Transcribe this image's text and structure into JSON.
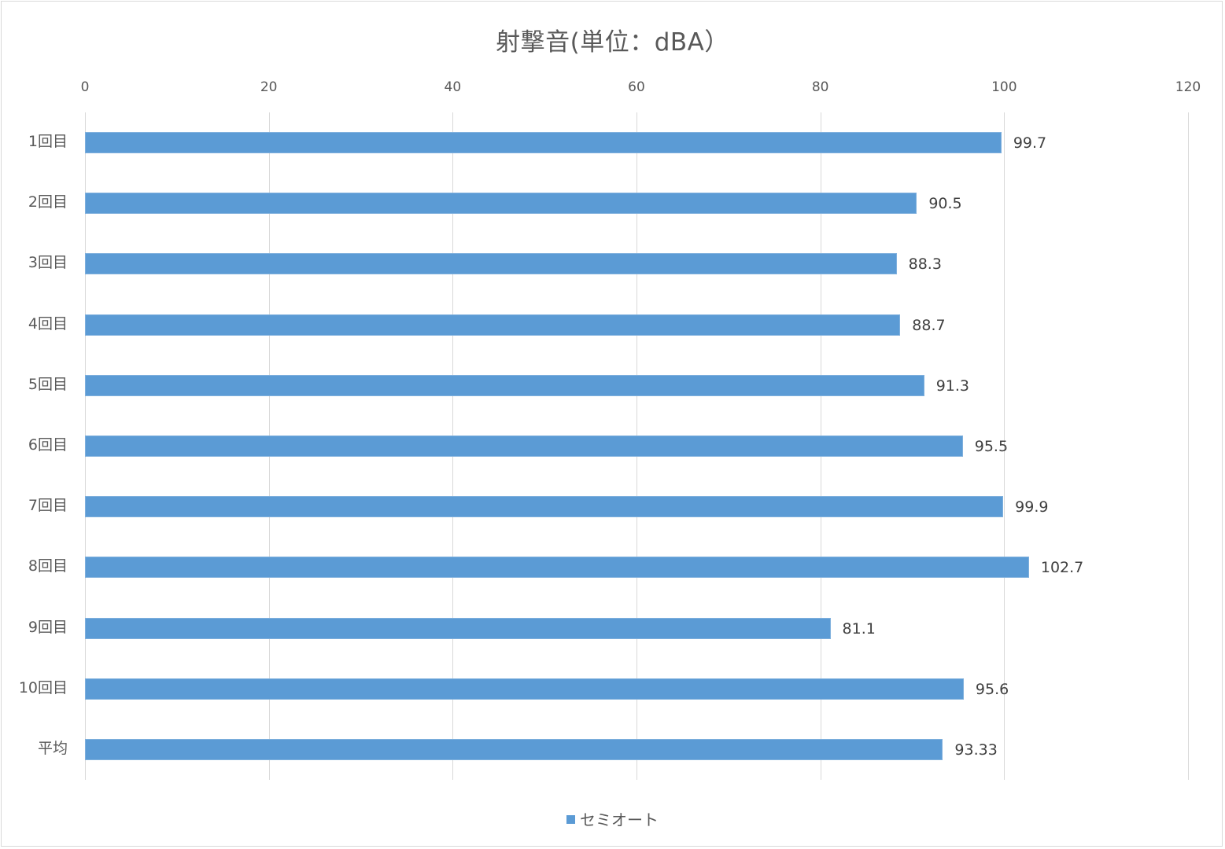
{
  "chart_data": {
    "type": "bar",
    "orientation": "horizontal",
    "title": "射撃音(単位：dBA）",
    "xlabel": "",
    "ylabel": "",
    "xlim": [
      0,
      120
    ],
    "x_ticks": [
      "0",
      "20",
      "40",
      "60",
      "80",
      "100",
      "120"
    ],
    "x_axis_position": "top",
    "grid": true,
    "legend_position": "bottom",
    "categories": [
      "1回目",
      "2回目",
      "3回目",
      "4回目",
      "5回目",
      "6回目",
      "7回目",
      "8回目",
      "9回目",
      "10回目",
      "平均"
    ],
    "series": [
      {
        "name": "セミオート",
        "color": "#5b9bd5",
        "values": [
          99.7,
          90.5,
          88.3,
          88.7,
          91.3,
          95.5,
          99.9,
          102.7,
          81.1,
          95.6,
          93.33
        ],
        "labels": [
          "99.7",
          "90.5",
          "88.3",
          "88.7",
          "91.3",
          "95.5",
          "99.9",
          "102.7",
          "81.1",
          "95.6",
          "93.33"
        ]
      }
    ]
  },
  "colors": {
    "bar": "#5b9bd5",
    "grid": "#d9d9d9",
    "text": "#595959",
    "data_label": "#404040"
  }
}
